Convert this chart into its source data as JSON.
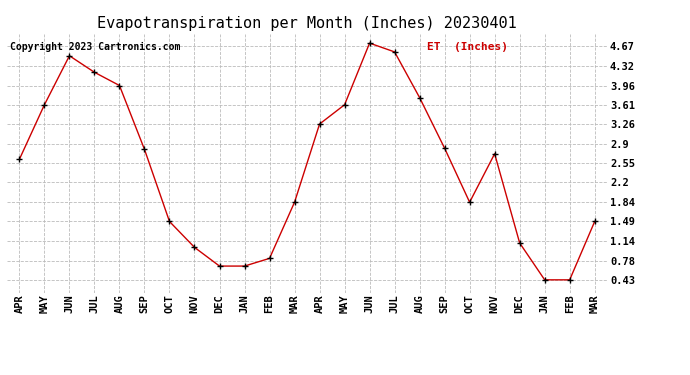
{
  "title": "Evapotranspiration per Month (Inches) 20230401",
  "copyright": "Copyright 2023 Cartronics.com",
  "legend_label": "ET  (Inches)",
  "months": [
    "APR",
    "MAY",
    "JUN",
    "JUL",
    "AUG",
    "SEP",
    "OCT",
    "NOV",
    "DEC",
    "JAN",
    "FEB",
    "MAR",
    "APR",
    "MAY",
    "JUN",
    "JUL",
    "AUG",
    "SEP",
    "OCT",
    "NOV",
    "DEC",
    "JAN",
    "FEB",
    "MAR"
  ],
  "values": [
    2.62,
    3.61,
    4.5,
    4.2,
    3.96,
    2.8,
    1.49,
    1.02,
    0.68,
    0.68,
    0.82,
    1.84,
    3.26,
    3.61,
    4.73,
    4.57,
    3.74,
    2.82,
    1.84,
    2.72,
    1.1,
    0.43,
    0.43,
    1.49
  ],
  "line_color": "#cc0000",
  "marker_color": "#000000",
  "background_color": "#ffffff",
  "grid_color": "#bbbbbb",
  "yticks": [
    0.43,
    0.78,
    1.14,
    1.49,
    1.84,
    2.2,
    2.55,
    2.9,
    3.26,
    3.61,
    3.96,
    4.32,
    4.67
  ],
  "ylim": [
    0.2,
    4.9
  ],
  "title_fontsize": 11,
  "tick_fontsize": 7.5,
  "copyright_fontsize": 7,
  "legend_fontsize": 8
}
